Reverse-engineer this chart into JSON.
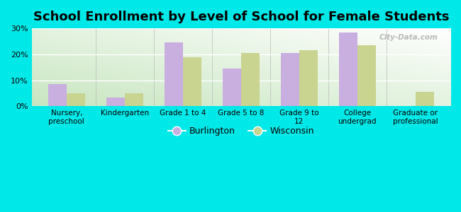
{
  "title": "School Enrollment by Level of School for Female Students",
  "categories": [
    "Nursery,\npreschool",
    "Kindergarten",
    "Grade 1 to 4",
    "Grade 5 to 8",
    "Grade 9 to\n12",
    "College\nundergrad",
    "Graduate or\nprofessional"
  ],
  "burlington": [
    8.5,
    3.5,
    24.5,
    14.5,
    20.5,
    28.5,
    0.0
  ],
  "wisconsin": [
    5.0,
    5.0,
    19.0,
    20.5,
    21.5,
    23.5,
    5.5
  ],
  "burlington_color": "#c9aee0",
  "wisconsin_color": "#c8d490",
  "bg_outer": "#00e8e8",
  "ylim": [
    0,
    30
  ],
  "yticks": [
    0,
    10,
    20,
    30
  ],
  "ytick_labels": [
    "0%",
    "10%",
    "20%",
    "30%"
  ],
  "watermark": "City-Data.com",
  "legend_burlington": "Burlington",
  "legend_wisconsin": "Wisconsin",
  "bar_width": 0.32,
  "title_fontsize": 13,
  "tick_fontsize": 7.5,
  "ytick_fontsize": 8
}
